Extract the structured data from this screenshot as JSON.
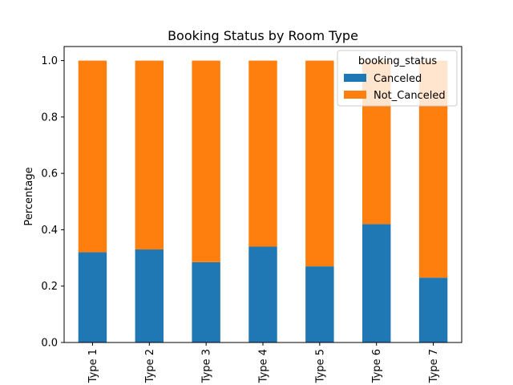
{
  "chart_data": {
    "type": "bar",
    "stacked": true,
    "title": "Booking Status by Room Type",
    "xlabel": "",
    "ylabel": "Percentage",
    "categories": [
      "Type 1",
      "Type 2",
      "Type 3",
      "Type 4",
      "Type 5",
      "Type 6",
      "Type 7"
    ],
    "series": [
      {
        "name": "Canceled",
        "color": "#1f77b4",
        "values": [
          0.32,
          0.33,
          0.285,
          0.34,
          0.27,
          0.42,
          0.23
        ]
      },
      {
        "name": "Not_Canceled",
        "color": "#ff7f0e",
        "values": [
          0.68,
          0.67,
          0.715,
          0.66,
          0.73,
          0.58,
          0.77
        ]
      }
    ],
    "ylim": [
      0,
      1.05
    ],
    "yticks": [
      "0.0",
      "0.2",
      "0.4",
      "0.6",
      "0.8",
      "1.0"
    ],
    "legend": {
      "title": "booking_status",
      "placement": "top-right"
    },
    "grid": false
  }
}
